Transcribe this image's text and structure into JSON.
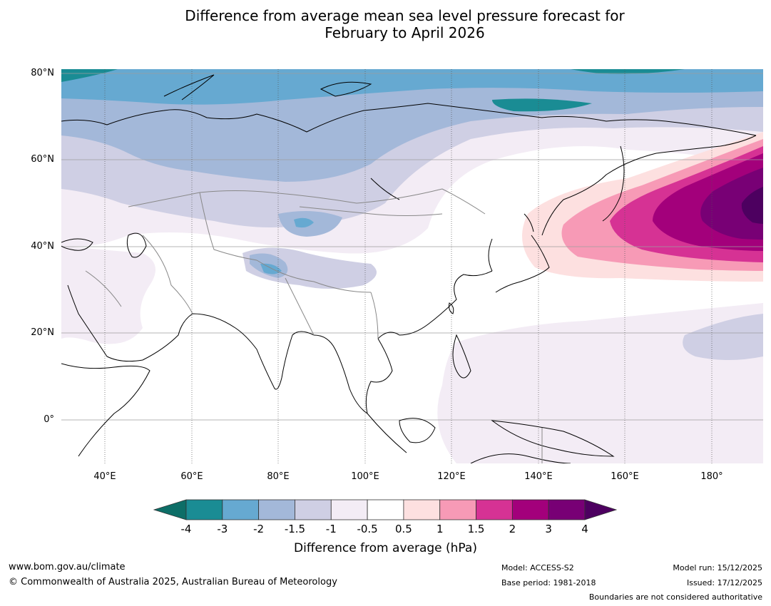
{
  "title_line1": "Difference from average mean sea level pressure forecast for",
  "title_line2": "February to April 2026",
  "map": {
    "lat_labels": [
      "80°N",
      "60°N",
      "40°N",
      "20°N",
      "0°"
    ],
    "lon_labels": [
      "40°E",
      "60°E",
      "80°E",
      "100°E",
      "120°E",
      "140°E",
      "160°E",
      "180°"
    ],
    "lat_range": [
      -10,
      80
    ],
    "lon_range": [
      30,
      192
    ],
    "regions_shown": [
      "Asia",
      "Siberia",
      "Arctic Ocean",
      "North Pacific",
      "India",
      "Maritime Continent",
      "Arabian Peninsula"
    ]
  },
  "colorbar": {
    "tick_labels": [
      "-4",
      "-3",
      "-2",
      "-1.5",
      "-1",
      "-0.5",
      "0.5",
      "1",
      "1.5",
      "2",
      "3",
      "4"
    ],
    "colors": [
      "#1a8c94",
      "#66a9d1",
      "#a3b8d9",
      "#cfcfe4",
      "#f3ecf5",
      "#ffffff",
      "#fde0e0",
      "#f79ab6",
      "#d63294",
      "#a3007b",
      "#780075"
    ],
    "under_color": "#0d6e67",
    "over_color": "#4d0060",
    "label": "Difference from average (hPa)"
  },
  "footer": {
    "website": "www.bom.gov.au/climate",
    "copyright": "© Commonwealth of Australia 2025, Australian Bureau of Meteorology",
    "model": "Model: ACCESS-S2",
    "base_period": "Base period: 1981-2018",
    "model_run": "Model run: 15/12/2025",
    "issued": "Issued: 17/12/2025",
    "disclaimer": "Boundaries are not considered authoritative"
  }
}
